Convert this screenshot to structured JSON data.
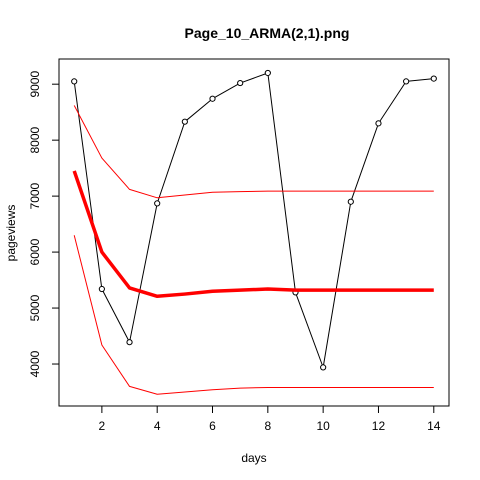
{
  "chart_data": {
    "type": "line",
    "title": "Page_10_ARMA(2,1).png",
    "xlabel": "days",
    "ylabel": "pageviews",
    "xlim": [
      0.45,
      14.55
    ],
    "ylim": [
      3250,
      9450
    ],
    "x_ticks": [
      2,
      4,
      6,
      8,
      10,
      12,
      14
    ],
    "y_ticks": [
      4000,
      5000,
      6000,
      7000,
      8000,
      9000
    ],
    "grid": false,
    "legend": "none",
    "series": [
      {
        "role": "observed",
        "color": "#000000",
        "marker": "open-circle",
        "x": [
          1,
          2,
          3,
          4,
          5,
          6,
          7,
          8,
          9,
          10,
          11,
          12,
          13,
          14
        ],
        "y": [
          9050,
          5340,
          4390,
          6870,
          8330,
          8740,
          9020,
          9200,
          5280,
          3940,
          6900,
          8300,
          9050,
          9100
        ]
      },
      {
        "role": "forecast",
        "color": "#ff0000",
        "x": [
          1,
          2,
          3,
          4,
          5,
          6,
          7,
          8,
          9,
          10,
          11,
          12,
          13,
          14
        ],
        "y": [
          7450,
          6000,
          5360,
          5210,
          5250,
          5300,
          5320,
          5340,
          5320,
          5320,
          5320,
          5320,
          5320,
          5320
        ]
      },
      {
        "role": "upper-bound",
        "color": "#ff0000",
        "x": [
          1,
          2,
          3,
          4,
          5,
          6,
          7,
          8,
          9,
          10,
          11,
          12,
          13,
          14
        ],
        "y": [
          8620,
          7680,
          7120,
          6970,
          7020,
          7070,
          7080,
          7090,
          7090,
          7090,
          7090,
          7090,
          7090,
          7090
        ]
      },
      {
        "role": "lower-bound",
        "color": "#ff0000",
        "x": [
          1,
          2,
          3,
          4,
          5,
          6,
          7,
          8,
          9,
          10,
          11,
          12,
          13,
          14
        ],
        "y": [
          6300,
          4340,
          3600,
          3460,
          3500,
          3540,
          3570,
          3580,
          3580,
          3580,
          3580,
          3580,
          3580,
          3580
        ]
      }
    ]
  }
}
